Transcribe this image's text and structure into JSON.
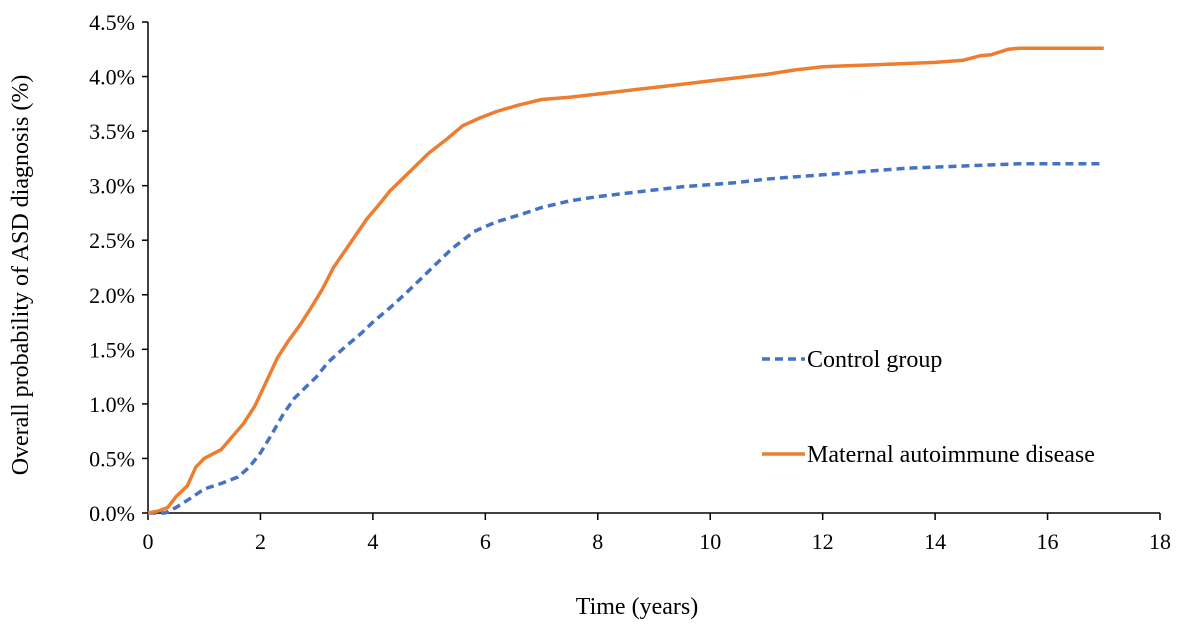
{
  "chart_data": {
    "type": "line",
    "title": "",
    "xlabel": "Time (years)",
    "ylabel": "Overall probability of ASD diagnosis (%)",
    "xlim": [
      0,
      18
    ],
    "ylim": [
      0,
      4.5
    ],
    "xticks": [
      0,
      2,
      4,
      6,
      8,
      10,
      12,
      14,
      16,
      18
    ],
    "xtick_labels": [
      "0",
      "2",
      "4",
      "6",
      "8",
      "10",
      "12",
      "14",
      "16",
      "18"
    ],
    "yticks": [
      0,
      0.5,
      1.0,
      1.5,
      2.0,
      2.5,
      3.0,
      3.5,
      4.0,
      4.5
    ],
    "ytick_labels": [
      "0.0%",
      "0.5%",
      "1.0%",
      "1.5%",
      "2.0%",
      "2.5%",
      "3.0%",
      "3.5%",
      "4.0%",
      "4.5%"
    ],
    "grid": false,
    "legend_position": "right",
    "series": [
      {
        "name": "Control group",
        "style": "dashed",
        "color": "#4472C4",
        "x": [
          0,
          0.3,
          0.5,
          0.8,
          1.0,
          1.3,
          1.6,
          1.8,
          2.0,
          2.2,
          2.4,
          2.6,
          2.8,
          3.0,
          3.2,
          3.5,
          3.8,
          4.0,
          4.3,
          4.6,
          5.0,
          5.4,
          5.8,
          6.2,
          6.6,
          7.0,
          7.5,
          8.0,
          8.5,
          9.0,
          9.5,
          10.0,
          10.5,
          11.0,
          11.5,
          12.0,
          12.5,
          13.0,
          13.5,
          14.0,
          14.5,
          15.0,
          15.5,
          16.0,
          16.5,
          17.0
        ],
        "values": [
          0,
          0.0,
          0.05,
          0.15,
          0.22,
          0.27,
          0.33,
          0.42,
          0.55,
          0.72,
          0.9,
          1.05,
          1.15,
          1.25,
          1.38,
          1.52,
          1.65,
          1.75,
          1.88,
          2.02,
          2.22,
          2.42,
          2.58,
          2.67,
          2.73,
          2.8,
          2.86,
          2.9,
          2.93,
          2.96,
          2.99,
          3.01,
          3.03,
          3.06,
          3.08,
          3.1,
          3.12,
          3.14,
          3.16,
          3.17,
          3.18,
          3.19,
          3.2,
          3.2,
          3.2,
          3.2
        ]
      },
      {
        "name": "Maternal autoimmune disease",
        "style": "solid",
        "color": "#ED7D31",
        "x": [
          0,
          0.2,
          0.35,
          0.5,
          0.7,
          0.85,
          1.0,
          1.3,
          1.5,
          1.7,
          1.9,
          2.1,
          2.3,
          2.5,
          2.7,
          2.9,
          3.1,
          3.3,
          3.5,
          3.7,
          3.9,
          4.1,
          4.3,
          4.5,
          4.8,
          5.0,
          5.3,
          5.6,
          5.9,
          6.2,
          6.6,
          7.0,
          7.5,
          8.0,
          8.5,
          9.0,
          9.5,
          10.0,
          10.5,
          11.0,
          11.5,
          12.0,
          12.5,
          13.0,
          13.5,
          14.0,
          14.5,
          14.8,
          15.0,
          15.3,
          15.5,
          16.0,
          16.5,
          17.0
        ],
        "values": [
          0,
          0.02,
          0.05,
          0.15,
          0.25,
          0.42,
          0.5,
          0.58,
          0.7,
          0.82,
          0.98,
          1.2,
          1.42,
          1.58,
          1.72,
          1.88,
          2.05,
          2.25,
          2.4,
          2.55,
          2.7,
          2.82,
          2.95,
          3.05,
          3.2,
          3.3,
          3.42,
          3.55,
          3.62,
          3.68,
          3.74,
          3.79,
          3.81,
          3.84,
          3.87,
          3.9,
          3.93,
          3.96,
          3.99,
          4.02,
          4.06,
          4.09,
          4.1,
          4.11,
          4.12,
          4.13,
          4.15,
          4.19,
          4.2,
          4.25,
          4.26,
          4.26,
          4.26,
          4.26
        ]
      }
    ]
  }
}
